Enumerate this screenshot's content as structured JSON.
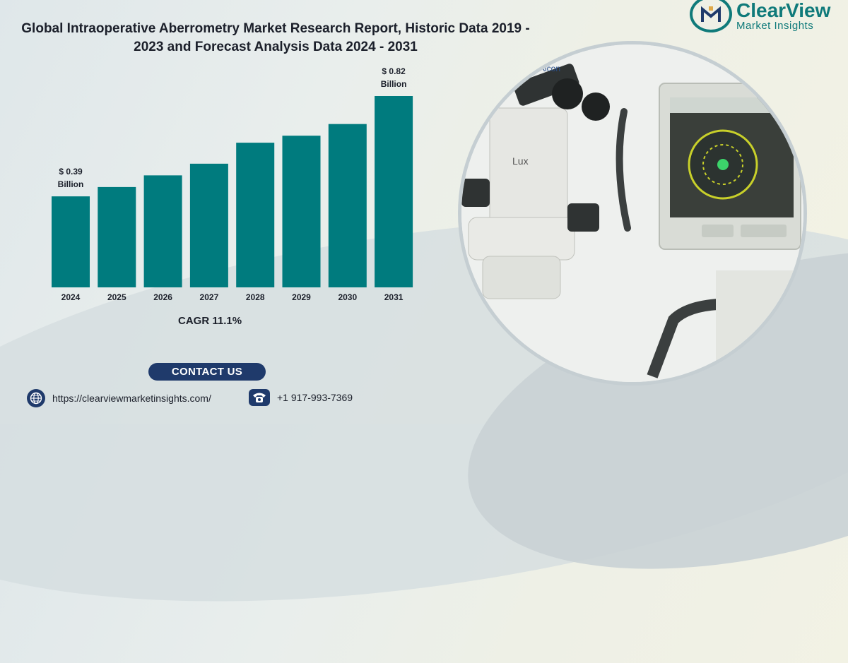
{
  "page": {
    "title_line1": "Global Intraoperative Aberrometry Market Research Report, Historic Data 2019 -",
    "title_line2": "2023 and Forecast Analysis Data 2024 - 2031",
    "cagr": "CAGR 11.1%",
    "contact_label": "CONTACT US",
    "website": "https://clearviewmarketinsights.com/",
    "phone": "+1 917-993-7369",
    "globe_icon": "globe-icon",
    "phone_icon": "phone-icon",
    "logo_name": "ClearView",
    "logo_sub": "Market Insights",
    "microscope_brand": "Alcon"
  },
  "colors": {
    "bar": "#007b7e",
    "text": "#1b1f2a",
    "button": "#1f3a6b",
    "brand": "#0f7a7a"
  },
  "chart_data": {
    "type": "bar",
    "categories": [
      "2024",
      "2025",
      "2026",
      "2027",
      "2028",
      "2029",
      "2030",
      "2031"
    ],
    "values": [
      0.39,
      0.43,
      0.48,
      0.53,
      0.62,
      0.65,
      0.7,
      0.82
    ],
    "annotations": [
      {
        "category": "2024",
        "line1": "$ 0.39",
        "line2": "Billion"
      },
      {
        "category": "2031",
        "line1": "$ 0.82",
        "line2": "Billion"
      }
    ],
    "title": "Global Intraoperative Aberrometry Market Research Report, Historic Data 2019 - 2023 and Forecast Analysis Data 2024 - 2031",
    "xlabel": "",
    "ylabel": "",
    "ylim": [
      0,
      0.82
    ],
    "grid": false,
    "legend": "none"
  }
}
